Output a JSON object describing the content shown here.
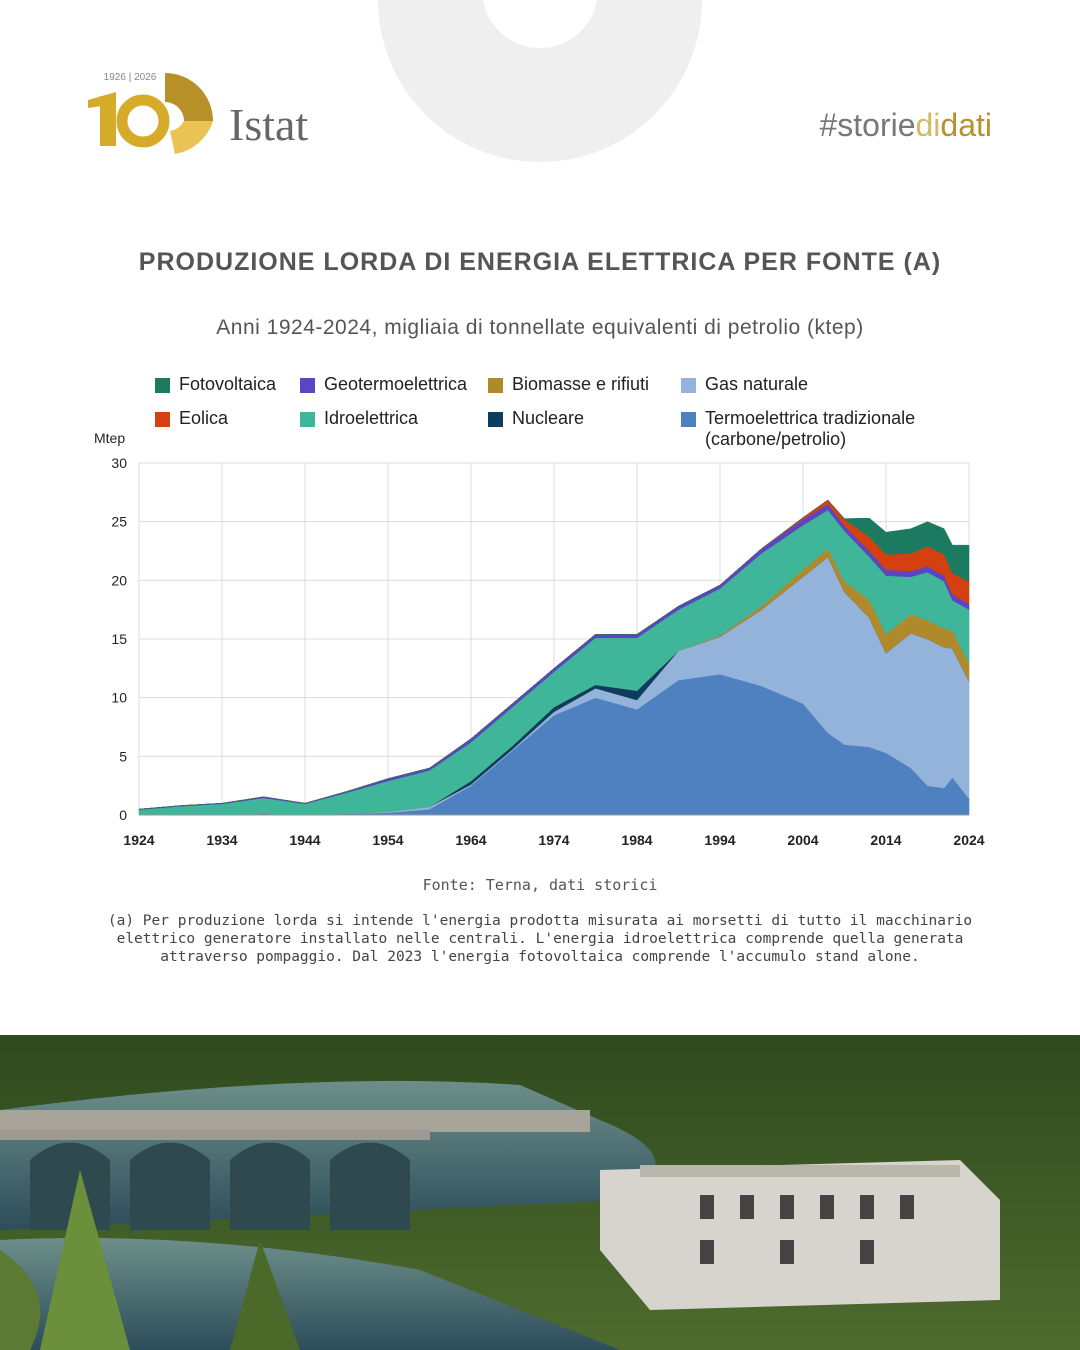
{
  "header": {
    "years": "1926 | 2026",
    "logo": "Istat",
    "hashtag": [
      "#storie",
      "di",
      "dati"
    ]
  },
  "chart_data": {
    "type": "stacked_area",
    "title": "PRODUZIONE LORDA DI ENERGIA ELETTRICA PER FONTE (A)",
    "subtitle": "Anni 1924-2024, migliaia di tonnellate equivalenti di petrolio (ktep)",
    "y_label": "Mtep",
    "x": [
      1924,
      1929,
      1934,
      1939,
      1944,
      1949,
      1954,
      1959,
      1964,
      1969,
      1974,
      1979,
      1984,
      1989,
      1994,
      1999,
      2004,
      2007,
      2009,
      2012,
      2014,
      2017,
      2019,
      2021,
      2022,
      2024
    ],
    "series": [
      {
        "name": "Fotovoltaica",
        "color": "#1b7a5f",
        "values": [
          0,
          0,
          0,
          0,
          0,
          0,
          0,
          0,
          0,
          0,
          0,
          0,
          0,
          0,
          0,
          0,
          0,
          0,
          0.06,
          1.6,
          1.9,
          2.1,
          2.1,
          2.2,
          2.4,
          3.1
        ]
      },
      {
        "name": "Eolica",
        "color": "#d4400f",
        "values": [
          0,
          0,
          0,
          0,
          0,
          0,
          0,
          0,
          0,
          0,
          0,
          0,
          0,
          0,
          0,
          0,
          0.15,
          0.35,
          0.55,
          1.2,
          1.3,
          1.5,
          1.7,
          1.8,
          1.8,
          1.9
        ]
      },
      {
        "name": "Geotermoelettrica",
        "color": "#5b45c0",
        "values": [
          0.05,
          0.05,
          0.05,
          0.1,
          0.05,
          0.1,
          0.2,
          0.2,
          0.3,
          0.3,
          0.3,
          0.3,
          0.3,
          0.3,
          0.3,
          0.4,
          0.5,
          0.5,
          0.45,
          0.5,
          0.5,
          0.5,
          0.5,
          0.5,
          0.5,
          0.5
        ]
      },
      {
        "name": "Idroelettrica",
        "color": "#3fb59a",
        "values": [
          0.45,
          0.75,
          0.95,
          1.35,
          0.95,
          1.8,
          2.6,
          3.1,
          3.3,
          3.3,
          3.0,
          4.0,
          4.5,
          3.5,
          4.0,
          4.5,
          3.8,
          3.3,
          4.3,
          3.7,
          5.0,
          3.2,
          4.1,
          4.0,
          2.6,
          4.6
        ]
      },
      {
        "name": "Biomasse e rifiuti",
        "color": "#b08a2a",
        "values": [
          0,
          0,
          0,
          0,
          0,
          0,
          0,
          0,
          0,
          0,
          0,
          0,
          0,
          0,
          0.1,
          0.3,
          0.6,
          0.7,
          0.9,
          1.5,
          1.6,
          1.6,
          1.6,
          1.6,
          1.5,
          1.5
        ]
      },
      {
        "name": "Nucleare",
        "color": "#0d3d5c",
        "values": [
          0,
          0,
          0,
          0,
          0,
          0,
          0,
          0,
          0.3,
          0.3,
          0.4,
          0.3,
          0.8,
          0,
          0,
          0,
          0,
          0,
          0,
          0,
          0,
          0,
          0,
          0,
          0,
          0
        ]
      },
      {
        "name": "Gas naturale",
        "color": "#93b3da",
        "values": [
          0,
          0,
          0,
          0,
          0,
          0,
          0.1,
          0.2,
          0.1,
          0.1,
          0.3,
          0.8,
          0.8,
          2.5,
          3.2,
          6.5,
          10.8,
          15.0,
          13.0,
          11.0,
          8.5,
          11.5,
          12.5,
          12.0,
          11.0,
          10.0
        ]
      },
      {
        "name": "Termoelettrica tradizionale (carbone/petrolio)",
        "color": "#4f81c1",
        "values": [
          0,
          0,
          0,
          0.1,
          0,
          0.1,
          0.2,
          0.5,
          2.5,
          5.5,
          8.5,
          10.0,
          9.0,
          11.5,
          12.0,
          11.0,
          9.5,
          7.0,
          6.0,
          5.8,
          5.3,
          4.0,
          2.5,
          2.3,
          3.2,
          1.4
        ]
      }
    ],
    "xlim": [
      1924,
      2024
    ],
    "xticks": [
      1924,
      1934,
      1944,
      1954,
      1964,
      1974,
      1984,
      1994,
      2004,
      2014,
      2024
    ],
    "ylim": [
      0,
      30
    ],
    "yticks": [
      0,
      5,
      10,
      15,
      20,
      25,
      30
    ],
    "grid": true
  },
  "source": "Fonte: Terna, dati storici",
  "note": "(a) Per produzione lorda si intende l'energia prodotta misurata ai morsetti di tutto il macchinario elettrico generatore installato nelle centrali. L'energia idroelettrica comprende quella generata attraverso pompaggio. Dal 2023 l'energia fotovoltaica comprende l'accumulo stand alone."
}
